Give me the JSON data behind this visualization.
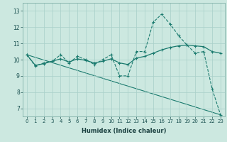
{
  "xlabel": "Humidex (Indice chaleur)",
  "background_color": "#cce8e0",
  "line_color": "#1a7a6e",
  "xlim": [
    -0.5,
    23.5
  ],
  "ylim": [
    6.5,
    13.5
  ],
  "yticks": [
    7,
    8,
    9,
    10,
    11,
    12,
    13
  ],
  "xtick_labels": [
    "0",
    "1",
    "2",
    "3",
    "4",
    "5",
    "6",
    "7",
    "8",
    "9",
    "10",
    "11",
    "12",
    "13",
    "14",
    "15",
    "16",
    "17",
    "18",
    "19",
    "20",
    "21",
    "22",
    "23"
  ],
  "series1_x": [
    0,
    1,
    2,
    3,
    4,
    5,
    6,
    7,
    8,
    9,
    10,
    11,
    12,
    13,
    14,
    15,
    16,
    17,
    18,
    19,
    20,
    21,
    22,
    23
  ],
  "series1_y": [
    10.3,
    9.6,
    9.8,
    9.9,
    10.3,
    9.8,
    10.2,
    10.0,
    9.7,
    10.0,
    10.3,
    9.0,
    9.0,
    10.5,
    10.5,
    12.3,
    12.8,
    12.2,
    11.5,
    10.9,
    10.4,
    10.5,
    8.2,
    6.6
  ],
  "series2_x": [
    0,
    1,
    2,
    3,
    4,
    5,
    6,
    7,
    8,
    9,
    10,
    11,
    12,
    13,
    14,
    15,
    16,
    17,
    18,
    19,
    20,
    21,
    22,
    23
  ],
  "series2_y": [
    10.3,
    9.65,
    9.75,
    9.9,
    10.05,
    9.85,
    10.05,
    9.95,
    9.8,
    9.9,
    10.05,
    9.8,
    9.7,
    10.1,
    10.2,
    10.4,
    10.6,
    10.75,
    10.85,
    10.9,
    10.85,
    10.8,
    10.5,
    10.4
  ],
  "trend_x": [
    0,
    23
  ],
  "trend_y": [
    10.3,
    6.6
  ]
}
